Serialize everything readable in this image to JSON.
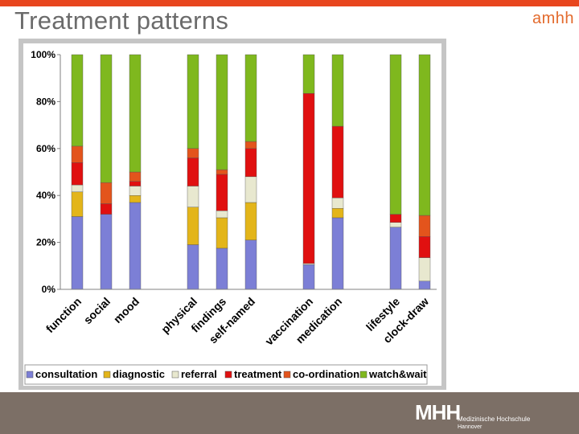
{
  "slide": {
    "title": "Treatment patterns",
    "brand": "amhh",
    "footer": {
      "logo": "MHH",
      "line1": "Medizinische Hochschule",
      "line2": "Hannover"
    }
  },
  "colors": {
    "consultation": "#7c7fd6",
    "diagnostic": "#e3b51a",
    "referral": "#e8e8cf",
    "treatment": "#e01010",
    "co-ordination": "#e3541c",
    "watch&wait": "#7fb81e"
  },
  "chart_data": {
    "type": "bar",
    "stacked": true,
    "percent": true,
    "title": "",
    "xlabel": "",
    "ylabel": "",
    "ylim": [
      0,
      100
    ],
    "yticks": [
      "0%",
      "20%",
      "40%",
      "60%",
      "80%",
      "100%"
    ],
    "categories": [
      "function",
      "social",
      "mood",
      "",
      "physical",
      "findings",
      "self-named",
      "",
      "vaccination",
      "medication",
      "",
      "lifestyle",
      "clock-draw"
    ],
    "legend_position": "bottom",
    "series": [
      {
        "name": "consultation",
        "values": [
          31,
          32,
          37,
          0,
          19,
          17.5,
          21,
          0,
          10.5,
          30.5,
          0,
          26.5,
          3.5
        ]
      },
      {
        "name": "diagnostic",
        "values": [
          10.5,
          0,
          3,
          0,
          16,
          13,
          16,
          0,
          0,
          4,
          0,
          0,
          0
        ]
      },
      {
        "name": "referral",
        "values": [
          3,
          0,
          4,
          0,
          9,
          3,
          11,
          0,
          0.5,
          4.5,
          0,
          2,
          10
        ]
      },
      {
        "name": "treatment",
        "values": [
          9.5,
          4.5,
          2,
          0,
          12,
          15.5,
          12,
          0,
          72.5,
          30.5,
          0,
          3.5,
          9
        ]
      },
      {
        "name": "co-ordination",
        "values": [
          7,
          9,
          4,
          0,
          4,
          2,
          3,
          0,
          0,
          0,
          0,
          0,
          9
        ]
      },
      {
        "name": "watch&wait",
        "values": [
          39,
          54.5,
          50,
          0,
          40,
          49,
          37,
          0,
          16.5,
          30.5,
          0,
          68,
          68.5
        ]
      }
    ]
  }
}
